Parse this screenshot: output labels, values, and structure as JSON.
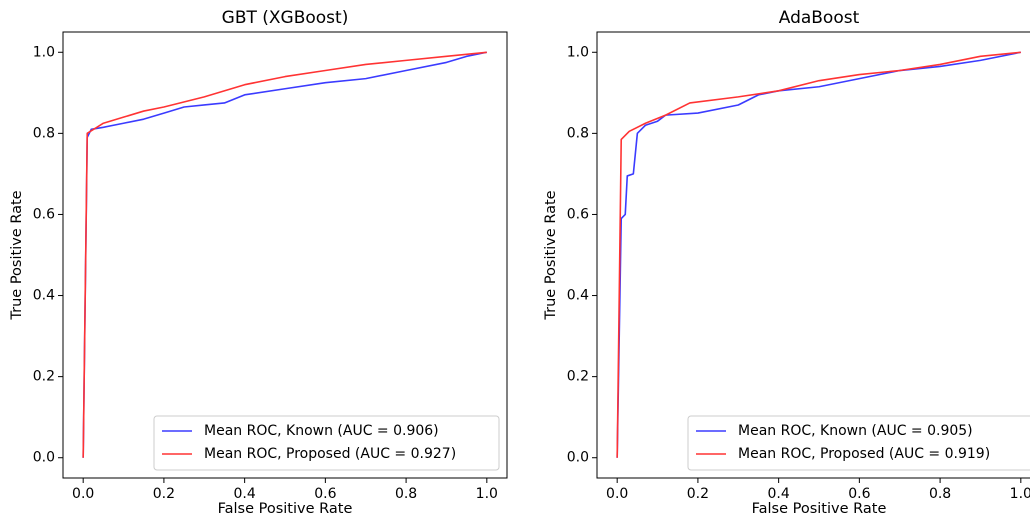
{
  "chart_data": [
    {
      "type": "line",
      "title": "GBT (XGBoost)",
      "xlabel": "False Positive Rate",
      "ylabel": "True Positive Rate",
      "xlim": [
        -0.05,
        1.05
      ],
      "ylim": [
        -0.05,
        1.05
      ],
      "xticks": [
        {
          "value": 0,
          "label": "0.0"
        },
        0.2,
        0.4,
        0.6,
        0.8,
        {
          "value": 1,
          "label": "1.0"
        }
      ],
      "yticks": [
        {
          "value": 0,
          "label": "0.0"
        },
        0.2,
        0.4,
        0.6,
        0.8,
        {
          "value": 1,
          "label": "1.0"
        }
      ],
      "grid": false,
      "legend": "lower right",
      "series": [
        {
          "name": "Mean ROC, Known (AUC = 0.906)",
          "color": "#3b3bff",
          "x": [
            0,
            0.01,
            0.02,
            0.05,
            0.1,
            0.15,
            0.2,
            0.25,
            0.3,
            0.35,
            0.4,
            0.5,
            0.6,
            0.7,
            0.8,
            0.9,
            0.95,
            1
          ],
          "values": [
            0,
            0.79,
            0.81,
            0.815,
            0.825,
            0.835,
            0.85,
            0.865,
            0.87,
            0.875,
            0.895,
            0.91,
            0.925,
            0.935,
            0.955,
            0.975,
            0.99,
            1
          ]
        },
        {
          "name": "Mean ROC, Proposed (AUC = 0.927)",
          "color": "#ff3333",
          "x": [
            0,
            0.01,
            0.05,
            0.1,
            0.15,
            0.2,
            0.3,
            0.4,
            0.5,
            0.6,
            0.7,
            0.8,
            0.9,
            1
          ],
          "values": [
            0,
            0.8,
            0.825,
            0.84,
            0.855,
            0.865,
            0.89,
            0.92,
            0.94,
            0.955,
            0.97,
            0.98,
            0.99,
            1
          ]
        }
      ]
    },
    {
      "type": "line",
      "title": "AdaBoost",
      "xlabel": "False Positive Rate",
      "ylabel": "True Positive Rate",
      "xlim": [
        -0.05,
        1.05
      ],
      "ylim": [
        -0.05,
        1.05
      ],
      "xticks": [
        {
          "value": 0,
          "label": "0.0"
        },
        0.2,
        0.4,
        0.6,
        0.8,
        {
          "value": 1,
          "label": "1.0"
        }
      ],
      "yticks": [
        {
          "value": 0,
          "label": "0.0"
        },
        0.2,
        0.4,
        0.6,
        0.8,
        {
          "value": 1,
          "label": "1.0"
        }
      ],
      "grid": false,
      "legend": "lower right",
      "series": [
        {
          "name": "Mean ROC, Known (AUC = 0.905)",
          "color": "#3b3bff",
          "x": [
            0,
            0.01,
            0.02,
            0.025,
            0.04,
            0.05,
            0.07,
            0.1,
            0.12,
            0.2,
            0.3,
            0.35,
            0.4,
            0.5,
            0.6,
            0.7,
            0.8,
            0.9,
            1
          ],
          "values": [
            0,
            0.59,
            0.6,
            0.695,
            0.7,
            0.8,
            0.82,
            0.83,
            0.845,
            0.85,
            0.87,
            0.895,
            0.905,
            0.915,
            0.935,
            0.955,
            0.965,
            0.98,
            1
          ]
        },
        {
          "name": "Mean ROC, Proposed (AUC = 0.919)",
          "color": "#ff3333",
          "x": [
            0,
            0.01,
            0.03,
            0.07,
            0.12,
            0.18,
            0.3,
            0.4,
            0.5,
            0.6,
            0.7,
            0.8,
            0.9,
            1
          ],
          "values": [
            0,
            0.785,
            0.805,
            0.825,
            0.845,
            0.875,
            0.89,
            0.905,
            0.93,
            0.945,
            0.955,
            0.97,
            0.99,
            1
          ]
        }
      ]
    }
  ]
}
